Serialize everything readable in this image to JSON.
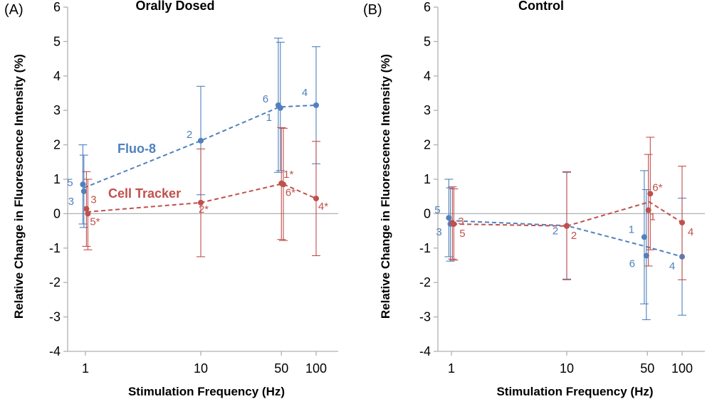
{
  "chart_data": [
    {
      "type": "scatter",
      "panel_label": "(A)",
      "title": "Orally Dosed",
      "xlabel": "Stimulation Frequency (Hz)",
      "ylabel": "Relative Change in Fluorescence Intensity (%)",
      "x_scale": "log",
      "x_ticks": [
        "1",
        "10",
        "50",
        "100"
      ],
      "x_tick_values": [
        1,
        10,
        50,
        100
      ],
      "ylim": [
        -4,
        6
      ],
      "y_ticks": [
        "-4",
        "-3",
        "-2",
        "-1",
        "0",
        "1",
        "2",
        "3",
        "4",
        "5",
        "6"
      ],
      "y_tick_values": [
        -4,
        -3,
        -2,
        -1,
        0,
        1,
        2,
        3,
        4,
        5,
        6
      ],
      "series": [
        {
          "name": "Fluo-8",
          "color": "#4f81bd",
          "points": [
            {
              "x": 0.95,
              "y": 0.85,
              "err_low": -0.3,
              "err_high": 2.0,
              "label": "5"
            },
            {
              "x": 0.97,
              "y": 0.65,
              "err_low": -0.4,
              "err_high": 1.7,
              "label": "3"
            },
            {
              "x": 10,
              "y": 2.12,
              "err_low": 0.55,
              "err_high": 3.7,
              "label": "2"
            },
            {
              "x": 47,
              "y": 3.15,
              "err_low": 1.2,
              "err_high": 5.1,
              "label": "6"
            },
            {
              "x": 49,
              "y": 3.07,
              "err_low": 1.25,
              "err_high": 4.98,
              "label": "1"
            },
            {
              "x": 100,
              "y": 3.15,
              "err_low": 1.45,
              "err_high": 4.85,
              "label": "4"
            }
          ],
          "trend": [
            [
              0.97,
              0.75
            ],
            [
              10,
              2.12
            ],
            [
              48,
              3.1
            ],
            [
              100,
              3.15
            ]
          ]
        },
        {
          "name": "Cell Tracker",
          "color": "#c0504d",
          "points": [
            {
              "x": 1.02,
              "y": 0.14,
              "err_low": -0.95,
              "err_high": 1.22,
              "label": "3"
            },
            {
              "x": 1.05,
              "y": 0.0,
              "err_low": -1.05,
              "err_high": 1.0,
              "label": "5*"
            },
            {
              "x": 10,
              "y": 0.32,
              "err_low": -1.25,
              "err_high": 1.88,
              "label": "2*"
            },
            {
              "x": 50,
              "y": 0.88,
              "err_low": -0.75,
              "err_high": 2.5,
              "label": "1*"
            },
            {
              "x": 52,
              "y": 0.85,
              "err_low": -0.78,
              "err_high": 2.48,
              "label": "6*"
            },
            {
              "x": 100,
              "y": 0.44,
              "err_low": -1.22,
              "err_high": 2.1,
              "label": "4*"
            }
          ],
          "trend": [
            [
              1.03,
              0.05
            ],
            [
              10,
              0.32
            ],
            [
              51,
              0.87
            ],
            [
              100,
              0.44
            ]
          ]
        }
      ]
    },
    {
      "type": "scatter",
      "panel_label": "(B)",
      "title": "Control",
      "xlabel": "Stimulation Frequency (Hz)",
      "ylabel": "Relative Change in Fluorescence Intensity (%)",
      "x_scale": "log",
      "x_ticks": [
        "1",
        "10",
        "50",
        "100"
      ],
      "x_tick_values": [
        1,
        10,
        50,
        100
      ],
      "ylim": [
        -4,
        6
      ],
      "y_ticks": [
        "-4",
        "-3",
        "-2",
        "-1",
        "0",
        "1",
        "2",
        "3",
        "4",
        "5",
        "6"
      ],
      "y_tick_values": [
        -4,
        -3,
        -2,
        -1,
        0,
        1,
        2,
        3,
        4,
        5,
        6
      ],
      "series": [
        {
          "name": "",
          "color": "#4f81bd",
          "points": [
            {
              "x": 0.95,
              "y": -0.12,
              "err_low": -1.25,
              "err_high": 1.0,
              "label": "5"
            },
            {
              "x": 0.98,
              "y": -0.3,
              "err_low": -1.38,
              "err_high": 0.75,
              "label": "3"
            },
            {
              "x": 10,
              "y": -0.35,
              "err_low": -1.9,
              "err_high": 1.2,
              "label": "2"
            },
            {
              "x": 47,
              "y": -0.68,
              "err_low": -2.62,
              "err_high": 1.25,
              "label": "1"
            },
            {
              "x": 49,
              "y": -1.22,
              "err_low": -3.08,
              "err_high": 0.7,
              "label": "6"
            },
            {
              "x": 100,
              "y": -1.25,
              "err_low": -2.95,
              "err_high": 0.45,
              "label": "4"
            }
          ],
          "trend": [
            [
              0.96,
              -0.2
            ],
            [
              10,
              -0.35
            ],
            [
              48,
              -0.95
            ],
            [
              100,
              -1.25
            ]
          ]
        },
        {
          "name": "",
          "color": "#c0504d",
          "points": [
            {
              "x": 1.02,
              "y": -0.28,
              "err_low": -1.32,
              "err_high": 0.78,
              "label": "3"
            },
            {
              "x": 1.05,
              "y": -0.3,
              "err_low": -1.35,
              "err_high": 0.72,
              "label": "5"
            },
            {
              "x": 10,
              "y": -0.36,
              "err_low": -1.92,
              "err_high": 1.22,
              "label": "2"
            },
            {
              "x": 51,
              "y": 0.1,
              "err_low": -1.52,
              "err_high": 1.72,
              "label": "1"
            },
            {
              "x": 53,
              "y": 0.58,
              "err_low": -1.05,
              "err_high": 2.22,
              "label": "6*"
            },
            {
              "x": 100,
              "y": -0.26,
              "err_low": -1.92,
              "err_high": 1.38,
              "label": "4"
            }
          ],
          "trend": [
            [
              1.03,
              -0.3
            ],
            [
              10,
              -0.36
            ],
            [
              52,
              0.34
            ],
            [
              100,
              -0.26
            ]
          ]
        }
      ]
    }
  ]
}
